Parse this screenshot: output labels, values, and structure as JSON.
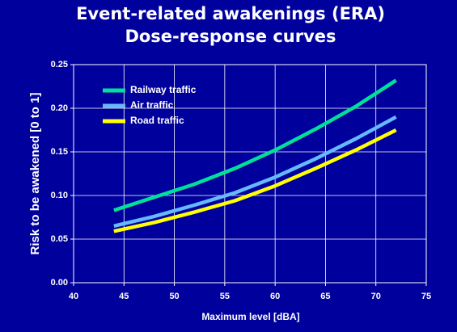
{
  "chart_data": {
    "type": "line",
    "title": [
      "Event-related awakenings (ERA)",
      "Dose-response curves"
    ],
    "x_label": "Maximum level [dBA]",
    "y_label": "Risk to be awakened  [0 to 1]",
    "x": [
      44,
      48,
      52,
      56,
      60,
      64,
      68,
      72
    ],
    "series": [
      {
        "name": "Railway traffic",
        "color": "#00e09a",
        "values": [
          0.083,
          0.098,
          0.113,
          0.131,
          0.152,
          0.176,
          0.202,
          0.232
        ]
      },
      {
        "name": "Air traffic",
        "color": "#66b8ff",
        "values": [
          0.065,
          0.076,
          0.089,
          0.103,
          0.121,
          0.142,
          0.165,
          0.19
        ]
      },
      {
        "name": "Road traffic",
        "color": "#ffff00",
        "values": [
          0.059,
          0.069,
          0.081,
          0.094,
          0.111,
          0.131,
          0.152,
          0.175
        ]
      }
    ],
    "xlim": [
      40,
      75
    ],
    "xticks": [
      40,
      45,
      50,
      55,
      60,
      65,
      70,
      75
    ],
    "ylim": [
      0,
      0.25
    ],
    "yticks": [
      {
        "value": 0,
        "label": "0.00"
      },
      {
        "value": 0.05,
        "label": "0.05"
      },
      {
        "value": 0.1,
        "label": "0.10"
      },
      {
        "value": 0.15,
        "label": "0.15"
      },
      {
        "value": 0.2,
        "label": "0.20"
      },
      {
        "value": 0.25,
        "label": "0.25"
      }
    ],
    "grid": true,
    "legend": "upper left"
  }
}
